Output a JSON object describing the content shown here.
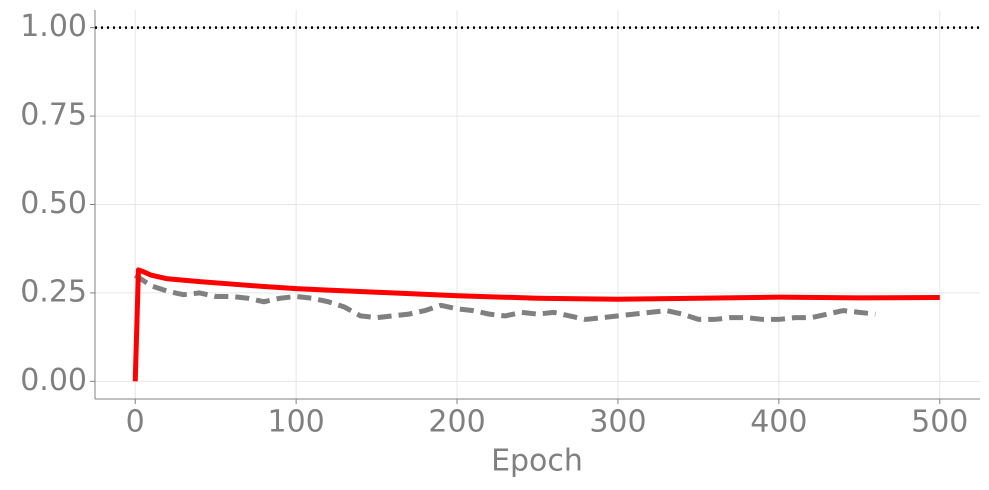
{
  "chart_data": {
    "type": "line",
    "xlabel": "Epoch",
    "xlim": [
      -25,
      525
    ],
    "ylim": [
      -0.05,
      1.05
    ],
    "xticks": [
      0,
      100,
      200,
      300,
      400,
      500
    ],
    "yticks": [
      {
        "value": 0,
        "label": "0.00"
      },
      {
        "value": 0.25,
        "label": "0.25"
      },
      {
        "value": 0.5,
        "label": "0.50"
      },
      {
        "value": 0.75,
        "label": "0.75"
      },
      {
        "value": 1,
        "label": "1.00"
      }
    ],
    "grid": true,
    "hlines": [
      {
        "value": 1.0,
        "color": "#000000",
        "style": "dotted"
      }
    ],
    "series": [
      {
        "color": "#ff0000",
        "style": "solid",
        "x": [
          0,
          2,
          5,
          10,
          20,
          40,
          60,
          80,
          100,
          120,
          150,
          200,
          250,
          300,
          350,
          400,
          450,
          500
        ],
        "values": [
          0.0,
          0.315,
          0.31,
          0.3,
          0.29,
          0.282,
          0.275,
          0.268,
          0.262,
          0.258,
          0.252,
          0.242,
          0.235,
          0.232,
          0.235,
          0.238,
          0.236,
          0.237
        ]
      },
      {
        "color": "#808080",
        "style": "dashed",
        "x": [
          0,
          10,
          20,
          30,
          40,
          50,
          60,
          70,
          80,
          90,
          100,
          110,
          120,
          130,
          140,
          150,
          160,
          170,
          180,
          190,
          200,
          210,
          220,
          230,
          240,
          250,
          260,
          270,
          280,
          290,
          300,
          310,
          320,
          330,
          340,
          350,
          360,
          370,
          380,
          390,
          400,
          410,
          420,
          430,
          440,
          450,
          460
        ],
        "values": [
          0.3,
          0.27,
          0.255,
          0.245,
          0.25,
          0.24,
          0.24,
          0.235,
          0.225,
          0.235,
          0.24,
          0.235,
          0.225,
          0.21,
          0.185,
          0.18,
          0.185,
          0.19,
          0.2,
          0.215,
          0.205,
          0.2,
          0.19,
          0.185,
          0.195,
          0.19,
          0.195,
          0.185,
          0.175,
          0.18,
          0.185,
          0.19,
          0.195,
          0.2,
          0.19,
          0.175,
          0.175,
          0.18,
          0.18,
          0.175,
          0.175,
          0.18,
          0.18,
          0.19,
          0.2,
          0.195,
          0.19
        ]
      }
    ]
  }
}
